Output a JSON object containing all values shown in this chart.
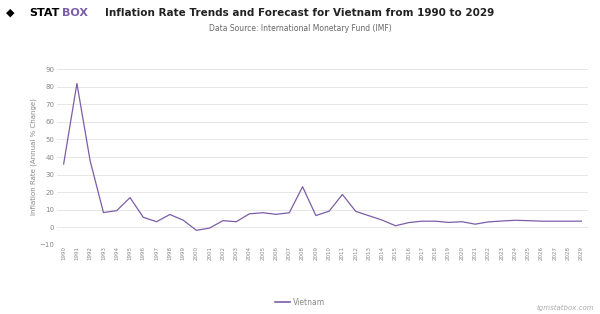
{
  "title": "Inflation Rate Trends and Forecast for Vietnam from 1990 to 2029",
  "subtitle": "Data Source: International Monetary Fund (IMF)",
  "ylabel": "Inflation Rate (Annual % Change)",
  "line_color": "#7B5EA7",
  "legend_label": "Vietnam",
  "background_color": "#ffffff",
  "plot_bg_color": "#ffffff",
  "watermark": "tgmstatbox.com",
  "ylim": [
    -10,
    90
  ],
  "yticks": [
    -10,
    0,
    10,
    20,
    30,
    40,
    50,
    60,
    70,
    80,
    90
  ],
  "years": [
    1990,
    1991,
    1992,
    1993,
    1994,
    1995,
    1996,
    1997,
    1998,
    1999,
    2000,
    2001,
    2002,
    2003,
    2004,
    2005,
    2006,
    2007,
    2008,
    2009,
    2010,
    2011,
    2012,
    2013,
    2014,
    2015,
    2016,
    2017,
    2018,
    2019,
    2020,
    2021,
    2022,
    2023,
    2024,
    2025,
    2026,
    2027,
    2028,
    2029
  ],
  "values": [
    36.0,
    81.8,
    37.7,
    8.4,
    9.5,
    16.9,
    5.7,
    3.2,
    7.3,
    4.1,
    -1.7,
    -0.4,
    3.8,
    3.2,
    7.7,
    8.3,
    7.4,
    8.3,
    23.1,
    6.7,
    9.2,
    18.7,
    9.1,
    6.6,
    4.1,
    0.9,
    2.7,
    3.5,
    3.5,
    2.8,
    3.2,
    1.8,
    3.1,
    3.6,
    4.0,
    3.8,
    3.5,
    3.5,
    3.5,
    3.5
  ],
  "logo_diamond_color": "#000000",
  "logo_stat_color": "#000000",
  "logo_box_color": "#7B5EA7",
  "title_color": "#222222",
  "subtitle_color": "#666666",
  "tick_color": "#888888",
  "grid_color": "#dddddd",
  "watermark_color": "#aaaaaa"
}
